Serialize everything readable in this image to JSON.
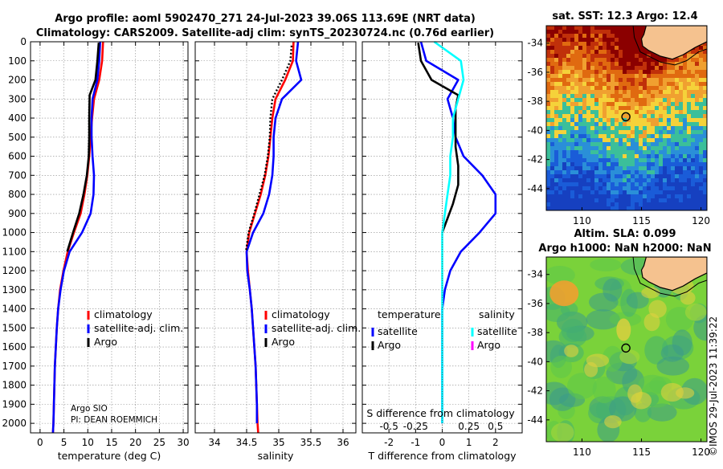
{
  "header": {
    "line1": "Argo profile: aoml 5902470_271 24-Jul-2023 39.06S 113.69E (NRT data)",
    "line2": "Climatology: CARS2009. Satellite-adj clim: synTS_20230724.nc (0.76d earlier)"
  },
  "credit": {
    "line1": "Argo SIO",
    "line2": "PI: DEAN ROEMMICH"
  },
  "timestamp": "©IMOS 29-Jul-2023 11:39:22",
  "colors": {
    "climatology": "#ff0000",
    "satellite": "#0000ff",
    "argo": "#000000",
    "sat_salinity": "#00ffff",
    "argo_salinity": "#ff00ff",
    "land": "#f5c28f"
  },
  "chart_data": [
    {
      "type": "line",
      "name": "temperature-panel",
      "xlabel": "temperature (deg C)",
      "ylabel": "",
      "xlim": [
        -2,
        31
      ],
      "ylim": [
        2050,
        0
      ],
      "xticks": [
        0,
        5,
        10,
        15,
        20,
        25,
        30
      ],
      "xtick_labels": [
        "0",
        "5",
        "10",
        "15",
        "20",
        "25",
        "30"
      ],
      "yticks": [
        0,
        100,
        200,
        300,
        400,
        500,
        600,
        700,
        800,
        900,
        1000,
        1100,
        1200,
        1300,
        1400,
        1500,
        1600,
        1700,
        1800,
        1900,
        2000
      ],
      "ytick_labels": [
        "0",
        "100",
        "200",
        "300",
        "400",
        "500",
        "600",
        "700",
        "800",
        "900",
        "1000",
        "1100",
        "1200",
        "1300",
        "1400",
        "1500",
        "1600",
        "1700",
        "1800",
        "1900",
        "2000"
      ],
      "legend": [
        "climatology",
        "satellite-adj. clim.",
        "Argo"
      ],
      "series": [
        {
          "name": "climatology",
          "style": "solid",
          "x": [
            13.2,
            13.0,
            12.4,
            11.3,
            10.9,
            10.6,
            10.3,
            9.9,
            9.3,
            8.5,
            7.1,
            5.8,
            4.9,
            4.2,
            3.8,
            3.5,
            3.3,
            3.1,
            3.0,
            2.9,
            2.8,
            2.7
          ],
          "y": [
            0,
            100,
            200,
            300,
            400,
            500,
            600,
            700,
            800,
            900,
            1000,
            1100,
            1200,
            1300,
            1400,
            1500,
            1600,
            1700,
            1800,
            1900,
            2000,
            2050
          ]
        },
        {
          "name": "satellite-adj. clim.",
          "style": "solid",
          "x": [
            12.6,
            12.4,
            12.0,
            11.0,
            10.8,
            10.8,
            11.0,
            11.3,
            11.2,
            10.6,
            8.8,
            6.2,
            5.0,
            4.3,
            3.8,
            3.5,
            3.3,
            3.1,
            3.0,
            2.9,
            2.8,
            2.7
          ],
          "y": [
            0,
            100,
            200,
            300,
            400,
            500,
            600,
            700,
            800,
            900,
            1000,
            1100,
            1200,
            1300,
            1400,
            1500,
            1600,
            1700,
            1800,
            1900,
            2000,
            2050
          ]
        },
        {
          "name": "Argo",
          "style": "solid",
          "x": [
            12.3,
            12.0,
            11.6,
            10.4,
            10.3,
            10.3,
            10.2,
            9.8,
            9.1,
            8.2,
            6.9,
            5.7
          ],
          "y": [
            5,
            100,
            200,
            280,
            400,
            500,
            600,
            700,
            800,
            900,
            1000,
            1100
          ]
        }
      ]
    },
    {
      "type": "line",
      "name": "salinity-panel",
      "xlabel": "salinity",
      "ylabel": "",
      "xlim": [
        33.7,
        36.2
      ],
      "ylim": [
        2050,
        0
      ],
      "xticks": [
        34,
        34.5,
        35,
        35.5,
        36
      ],
      "xtick_labels": [
        "34",
        "34.5",
        "35",
        "35.5",
        "36"
      ],
      "legend": [
        "climatology",
        "satellite-adj. clim.",
        "Argo"
      ],
      "series": [
        {
          "name": "climatology",
          "style": "solid",
          "x": [
            35.23,
            35.22,
            35.1,
            34.95,
            34.9,
            34.87,
            34.84,
            34.79,
            34.72,
            34.63,
            34.54,
            34.5,
            34.52,
            34.55,
            34.58,
            34.6,
            34.62,
            34.64,
            34.65,
            34.66,
            34.67,
            34.68
          ],
          "y": [
            0,
            100,
            200,
            300,
            400,
            500,
            600,
            700,
            800,
            900,
            1000,
            1100,
            1200,
            1300,
            1400,
            1500,
            1600,
            1700,
            1800,
            1900,
            2000,
            2050
          ]
        },
        {
          "name": "satellite-adj. clim.",
          "style": "solid",
          "x": [
            35.3,
            35.27,
            35.35,
            35.05,
            34.95,
            34.92,
            34.92,
            34.9,
            34.85,
            34.76,
            34.6,
            34.5,
            34.51,
            34.55,
            34.58,
            34.6,
            34.62,
            34.64,
            34.65,
            34.66,
            34.66
          ],
          "y": [
            0,
            100,
            200,
            300,
            400,
            500,
            600,
            700,
            800,
            900,
            1000,
            1100,
            1200,
            1300,
            1400,
            1500,
            1600,
            1700,
            1800,
            1900,
            2000
          ]
        },
        {
          "name": "Argo",
          "style": "dotted",
          "x": [
            35.2,
            35.18,
            35.05,
            34.9,
            34.87,
            34.86,
            34.83,
            34.78,
            34.7,
            34.62,
            34.53,
            34.49
          ],
          "y": [
            20,
            100,
            200,
            300,
            400,
            500,
            600,
            700,
            800,
            900,
            1000,
            1100
          ]
        }
      ]
    },
    {
      "type": "line",
      "name": "difference-panel",
      "xlabel": "T difference from climatology",
      "ylabel": "",
      "xlim": [
        -3,
        3
      ],
      "ylim": [
        2050,
        0
      ],
      "xticks": [
        -2,
        -1,
        0,
        1,
        2
      ],
      "xtick_labels": [
        "-2",
        "-1",
        "0",
        "1",
        "2"
      ],
      "top_axis_label": "S difference from climatology",
      "top_ticks": [
        -0.5,
        -0.25,
        0,
        0.25,
        0.5
      ],
      "top_tick_labels": [
        "-0.5",
        "-0.25",
        "0",
        "0.25",
        "0.5"
      ],
      "top_tick_scale": 4,
      "legend_left_title": "temperature",
      "legend_right_title": "salinity",
      "legend_left": [
        "satellite",
        "Argo"
      ],
      "legend_right": [
        "satellite",
        "Argo"
      ],
      "series": [
        {
          "name": "T satellite",
          "style": "solid",
          "x": [
            -0.8,
            -0.6,
            0.6,
            0.2,
            0.4,
            0.5,
            0.8,
            1.5,
            2.0,
            2.0,
            1.4,
            0.7,
            0.3,
            0.1,
            0.0,
            0.0,
            0.0,
            0.0,
            0.0,
            0.0,
            0.0
          ],
          "y": [
            0,
            100,
            200,
            300,
            400,
            500,
            600,
            700,
            800,
            900,
            1000,
            1100,
            1200,
            1300,
            1400,
            1500,
            1600,
            1700,
            1800,
            1900,
            2000
          ]
        },
        {
          "name": "T Argo",
          "style": "solid",
          "x": [
            -0.9,
            -0.8,
            -0.4,
            0.6,
            0.5,
            0.5,
            0.5,
            0.6,
            0.6,
            0.4,
            0.0
          ],
          "y": [
            5,
            100,
            200,
            280,
            350,
            450,
            550,
            650,
            750,
            850,
            1000
          ]
        },
        {
          "name": "S satellite",
          "style": "solid",
          "x": [
            -0.3,
            0.7,
            0.8,
            0.6,
            0.4,
            0.4,
            0.3,
            0.3,
            0.2,
            0.1,
            0.0,
            0.0,
            0.0,
            0.0,
            0.0,
            0.0,
            0.0,
            0.0,
            0.0,
            0.0,
            0.0
          ],
          "y": [
            0,
            100,
            200,
            300,
            400,
            500,
            600,
            700,
            800,
            900,
            1000,
            1100,
            1200,
            1300,
            1400,
            1500,
            1600,
            1700,
            1800,
            1900,
            2000
          ]
        }
      ]
    }
  ],
  "maps": [
    {
      "name": "sst-map",
      "title": "sat. SST: 12.3 Argo: 12.4",
      "xlim": [
        107,
        120.5
      ],
      "ylim": [
        -45.5,
        -32.8
      ],
      "xticks": [
        110,
        115,
        120
      ],
      "xtick_labels": [
        "110",
        "115",
        "120"
      ],
      "yticks": [
        -34,
        -36,
        -38,
        -40,
        -42,
        -44
      ],
      "ytick_labels": [
        "-34",
        "-36",
        "-38",
        "-40",
        "-42",
        "-44"
      ],
      "marker_lon": 113.69,
      "marker_lat": -39.06,
      "palette": [
        "#8b0000",
        "#c0300a",
        "#e06a10",
        "#f0a030",
        "#f5d23a",
        "#3bbf9a",
        "#2a8fd8",
        "#1a5cd8",
        "#1640c0"
      ]
    },
    {
      "name": "sla-map",
      "title_line1": "Altim. SLA: 0.099",
      "title_line2": "Argo h1000: NaN h2000: NaN",
      "xlim": [
        107,
        120.5
      ],
      "ylim": [
        -45.5,
        -32.8
      ],
      "xticks": [
        110,
        115,
        120
      ],
      "xtick_labels": [
        "110",
        "115",
        "120"
      ],
      "yticks": [
        -34,
        -36,
        -38,
        -40,
        -42,
        -44
      ],
      "ytick_labels": [
        "-34",
        "-36",
        "-38",
        "-40",
        "-42",
        "-44"
      ],
      "marker_lon": 113.69,
      "marker_lat": -39.06,
      "palette": [
        "#3a9b8a",
        "#44b070",
        "#5cc64a",
        "#7ad23a",
        "#a8d63a",
        "#e0d040",
        "#f0a030"
      ]
    }
  ]
}
